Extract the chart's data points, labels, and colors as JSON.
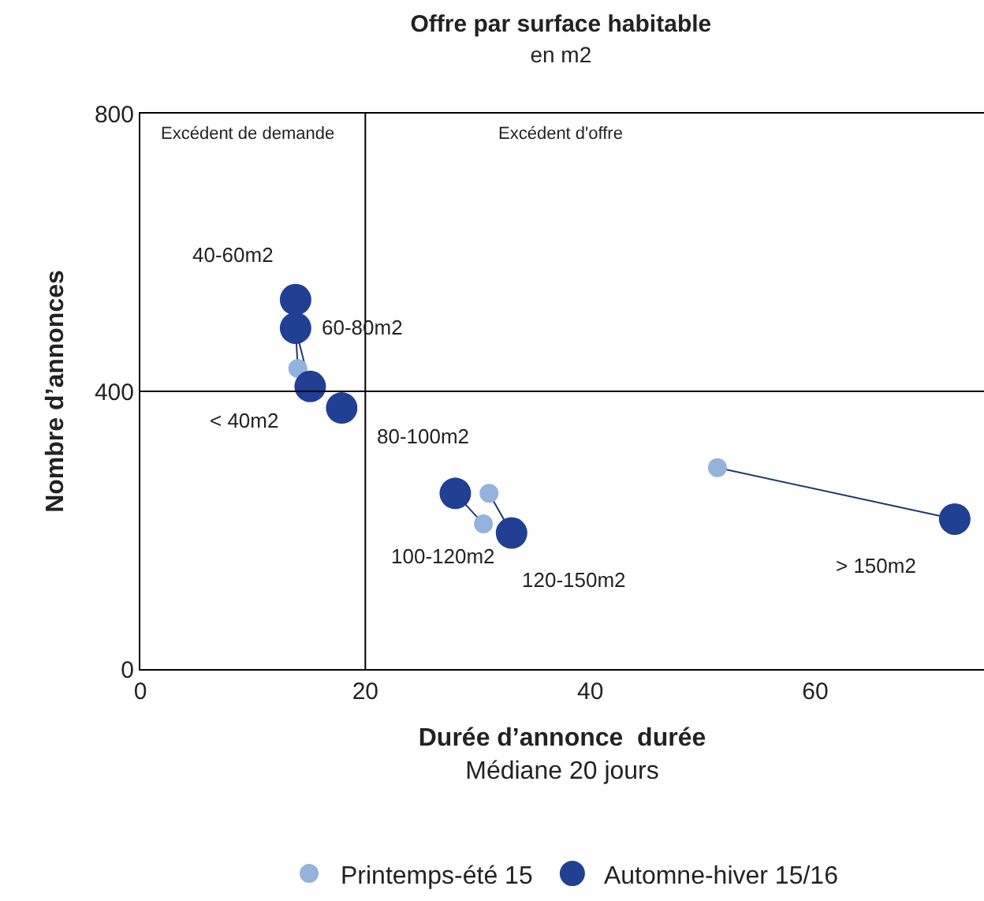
{
  "chart_data": {
    "type": "scatter",
    "title": "Offre par surface habitable",
    "subtitle": "en m2",
    "xlabel": "Durée d’annonce  durée\nMédiane 20 jours",
    "ylabel": "Nombre d’annonces",
    "xlim": [
      0,
      75
    ],
    "ylim": [
      0,
      800
    ],
    "xticks": [
      0,
      20,
      40,
      60
    ],
    "yticks": [
      0,
      400,
      800
    ],
    "grid": false,
    "legend": "bottom",
    "marker": "circle",
    "ref_lines": [
      {
        "axis": "x",
        "value": 20,
        "color": "#000000"
      },
      {
        "axis": "y",
        "value": 400,
        "color": "#000000"
      }
    ],
    "series": [
      {
        "type": "line",
        "marker": "none",
        "color": "#1f3a68",
        "x": [
          13.8,
          14.0
        ],
        "values": [
          491,
          433
        ]
      },
      {
        "type": "line",
        "marker": "none",
        "color": "#1f3a68",
        "x": [
          13.8,
          15.1
        ],
        "values": [
          491,
          407
        ]
      },
      {
        "type": "line",
        "marker": "none",
        "color": "#1f3a68",
        "x": [
          28.0,
          30.5
        ],
        "values": [
          253,
          209
        ]
      },
      {
        "type": "line",
        "marker": "none",
        "color": "#1f3a68",
        "x": [
          31.0,
          33.0
        ],
        "values": [
          253,
          196
        ]
      },
      {
        "type": "line",
        "marker": "none",
        "color": "#1f3a68",
        "x": [
          51.3,
          72.4
        ],
        "values": [
          290,
          216
        ]
      },
      {
        "name": "Printemps-été 15",
        "color": "#93b3dc",
        "x": [
          14.0,
          30.5,
          31.0,
          51.3
        ],
        "values": [
          433,
          209,
          253,
          290
        ]
      },
      {
        "name": "Automne-hiver 15/16",
        "color": "#213f93",
        "x": [
          13.8,
          13.8,
          15.1,
          17.9,
          28.0,
          33.0,
          72.4
        ],
        "values": [
          532,
          491,
          407,
          376,
          253,
          196,
          216
        ]
      }
    ],
    "annotations": [
      "Excédent de demande",
      "Excédent d'offre",
      {
        "text": "40-60m2",
        "x": 13.8,
        "y": 532
      },
      {
        "text": "60-80m2",
        "x": 13.8,
        "y": 491
      },
      {
        "text": "< 40m2",
        "x": 15.1,
        "y": 407
      },
      {
        "text": "80-100m2",
        "x": 17.9,
        "y": 376
      },
      {
        "text": "100-120m2",
        "x": 28.0,
        "y": 253
      },
      {
        "text": "120-150m2",
        "x": 33.0,
        "y": 196
      },
      {
        "text": "> 150m2",
        "x": 72.4,
        "y": 216
      }
    ]
  }
}
